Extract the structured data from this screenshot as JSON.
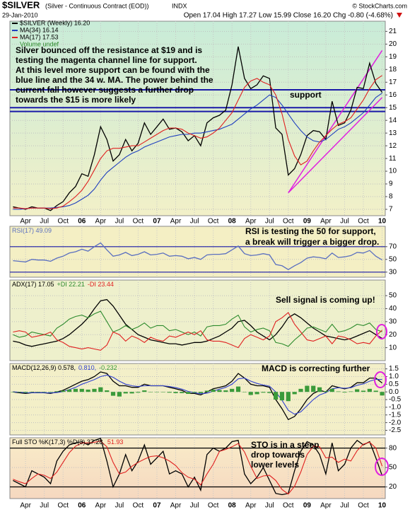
{
  "header": {
    "symbol": "$SILVER",
    "description": "(Silver - Continuous Contract (EOD))",
    "exchange": "INDX",
    "source": "© StockCharts.com",
    "date": "29-Jan-2010",
    "quote": "Open 17.04 High 17.27 Low 15.99 Close 16.20 Chg -0.80 (-4.68%)"
  },
  "chart_data": [
    {
      "type": "line",
      "title": "$SILVER (Weekly) 16.20",
      "categories": [
        null,
        null,
        "Apr",
        null,
        null,
        "Jul",
        null,
        null,
        "Oct",
        null,
        null,
        "06",
        null,
        null,
        "Apr",
        null,
        null,
        "Jul",
        null,
        null,
        "Oct",
        null,
        null,
        "07",
        null,
        null,
        "Apr",
        null,
        null,
        "Jul",
        null,
        null,
        "Oct",
        null,
        null,
        "08",
        null,
        null,
        "Apr",
        null,
        null,
        "Jul",
        null,
        null,
        "Oct",
        null,
        null,
        "09",
        null,
        null,
        "Apr",
        null,
        null,
        "Jul",
        null,
        null,
        "Oct",
        null,
        null,
        "10"
      ],
      "series": [
        {
          "name": "$SILVER (Weekly) 16.20",
          "color": "#000000",
          "values": [
            7.2,
            7.1,
            7.0,
            7.2,
            7.1,
            7.1,
            6.9,
            7.3,
            7.6,
            8.3,
            8.8,
            9.8,
            9.6,
            11.3,
            13.5,
            12.5,
            10.8,
            11.3,
            12.5,
            11.6,
            12.2,
            13.8,
            12.9,
            13.5,
            14.1,
            13.3,
            13.4,
            13.1,
            12.4,
            12.8,
            12.0,
            13.8,
            14.2,
            14.4,
            14.8,
            16.8,
            19.8,
            17.3,
            16.5,
            16.8,
            17.5,
            17.3,
            13.4,
            12.9,
            9.7,
            10.2,
            11.3,
            12.8,
            13.2,
            13.1,
            12.5,
            15.5,
            13.6,
            13.8,
            14.8,
            16.6,
            16.5,
            18.5,
            16.9,
            16.2
          ]
        },
        {
          "name": "MA(34) 16.14",
          "color": "#1f3fbf",
          "values": [
            7.0,
            7.0,
            7.05,
            7.1,
            7.1,
            7.1,
            7.1,
            7.15,
            7.2,
            7.3,
            7.5,
            7.8,
            8.1,
            8.6,
            9.3,
            9.9,
            10.3,
            10.7,
            11.1,
            11.4,
            11.6,
            11.9,
            12.1,
            12.3,
            12.5,
            12.7,
            12.8,
            12.9,
            12.9,
            13.0,
            13.0,
            13.1,
            13.2,
            13.3,
            13.5,
            13.7,
            14.1,
            14.5,
            14.9,
            15.2,
            15.6,
            16.0,
            15.8,
            15.2,
            14.5,
            13.8,
            13.2,
            12.7,
            12.4,
            12.3,
            12.5,
            12.9,
            13.3,
            13.5,
            13.8,
            14.2,
            14.6,
            15.2,
            15.8,
            16.14
          ]
        },
        {
          "name": "MA(17) 17.53",
          "color": "#e02020",
          "values": [
            7.1,
            7.1,
            7.05,
            7.1,
            7.1,
            7.1,
            7.05,
            7.1,
            7.25,
            7.6,
            8.0,
            8.5,
            9.2,
            10.1,
            11.0,
            11.6,
            11.8,
            11.8,
            11.9,
            12.0,
            12.0,
            12.3,
            12.6,
            12.9,
            13.2,
            13.4,
            13.4,
            13.3,
            13.0,
            12.8,
            12.6,
            12.7,
            13.0,
            13.4,
            14.0,
            14.6,
            15.6,
            16.6,
            17.1,
            17.3,
            17.0,
            16.8,
            16.0,
            14.5,
            12.5,
            11.2,
            10.5,
            10.8,
            11.6,
            12.3,
            12.8,
            13.3,
            13.7,
            13.9,
            14.2,
            14.9,
            15.6,
            16.5,
            17.2,
            17.53
          ]
        }
      ],
      "note": "Volume undef",
      "ylim": [
        6.5,
        21.8
      ],
      "yticks": [
        7,
        8,
        9,
        10,
        11,
        12,
        13,
        14,
        15,
        16,
        17,
        18,
        19,
        20,
        21
      ],
      "hlines": [
        16.4,
        15.0,
        14.7
      ],
      "hline_color": "#1a1aa8",
      "trendlines": [
        {
          "x": [
            44,
            59
          ],
          "y": [
            8.3,
            19.5
          ]
        },
        {
          "x": [
            44,
            59
          ],
          "y": [
            8.3,
            15.8
          ]
        }
      ],
      "trendline_color": "#e020e0",
      "annotations": [
        {
          "lines": [
            "Silver bounced off the resistance at $19 and is",
            "testing the magenta channel line for support.",
            "At this level more support can be found with the",
            "blue line and the 34 w. MA. The power behind the",
            "current fall however suggests a further drop",
            "towards the $15 is more likely"
          ],
          "color": "#2020e0"
        },
        {
          "lines": [
            "support"
          ],
          "color": "#2020e0"
        }
      ]
    },
    {
      "type": "line",
      "title": "RSI(17) 49.09",
      "series": [
        {
          "name": "RSI(17) 49.09",
          "color": "#5a6fc0",
          "values": [
            48,
            47,
            46,
            50,
            49,
            49,
            47,
            52,
            55,
            60,
            62,
            66,
            63,
            70,
            76,
            65,
            55,
            57,
            61,
            56,
            58,
            62,
            57,
            58,
            60,
            55,
            56,
            55,
            51,
            53,
            50,
            57,
            58,
            58,
            59,
            65,
            71,
            59,
            56,
            57,
            59,
            57,
            42,
            40,
            34,
            40,
            45,
            52,
            54,
            53,
            51,
            60,
            53,
            54,
            56,
            61,
            60,
            64,
            55,
            49.09
          ]
        }
      ],
      "ylim": [
        22,
        102
      ],
      "yticks": [
        30,
        50,
        70
      ],
      "hlines": [
        70,
        30
      ],
      "hline_color": "#1a1aa8",
      "annotations": [
        {
          "lines": [
            "RSI is testing the 50 for support,",
            "a break will trigger a bigger drop."
          ],
          "color": "#000000"
        }
      ]
    },
    {
      "type": "line",
      "title": "ADX(17) 17.05",
      "series": [
        {
          "name": "ADX(17) 17.05",
          "color": "#000000",
          "values": [
            15,
            14,
            12,
            11,
            12,
            13,
            14,
            15,
            17,
            20,
            24,
            28,
            33,
            40,
            46,
            47,
            42,
            35,
            28,
            24,
            20,
            18,
            16,
            15,
            14,
            13,
            13,
            12,
            13,
            14,
            14,
            15,
            17,
            19,
            22,
            25,
            30,
            31,
            27,
            22,
            19,
            16,
            20,
            26,
            33,
            36,
            33,
            29,
            25,
            22,
            19,
            18,
            17,
            16,
            17,
            19,
            21,
            23,
            20,
            17.05
          ]
        },
        {
          "name": "+DI 22.21",
          "color": "#2e8b2e",
          "values": [
            20,
            18,
            19,
            22,
            21,
            20,
            19,
            25,
            28,
            32,
            34,
            35,
            33,
            36,
            38,
            30,
            22,
            24,
            27,
            24,
            26,
            29,
            25,
            27,
            27,
            23,
            24,
            22,
            20,
            22,
            19,
            26,
            27,
            27,
            28,
            32,
            35,
            26,
            22,
            24,
            25,
            23,
            14,
            13,
            11,
            16,
            20,
            25,
            26,
            24,
            22,
            28,
            22,
            23,
            25,
            28,
            27,
            29,
            24,
            22.21
          ]
        },
        {
          "name": "-DI 23.44",
          "color": "#e02020",
          "values": [
            22,
            23,
            22,
            18,
            19,
            20,
            22,
            16,
            14,
            11,
            10,
            9,
            10,
            9,
            8,
            12,
            22,
            20,
            15,
            19,
            17,
            14,
            18,
            16,
            15,
            19,
            18,
            20,
            22,
            20,
            23,
            16,
            15,
            15,
            14,
            12,
            10,
            17,
            20,
            18,
            16,
            19,
            30,
            33,
            37,
            28,
            22,
            16,
            15,
            17,
            19,
            13,
            19,
            18,
            16,
            13,
            14,
            13,
            19,
            23.44
          ]
        }
      ],
      "ylim": [
        0,
        62
      ],
      "yticks": [
        10,
        20,
        30,
        40,
        50
      ],
      "annotations": [
        {
          "lines": [
            "Sell signal is coming up!"
          ],
          "color": "#e020e0"
        }
      ]
    },
    {
      "type": "line",
      "title": "MACD(12,26,9)",
      "series": [
        {
          "name": "MACD(12,26,9) 0.578,",
          "color": "#000000",
          "values": [
            0,
            -0.05,
            -0.1,
            -0.05,
            -0.05,
            -0.05,
            -0.1,
            0,
            0.1,
            0.3,
            0.5,
            0.7,
            0.8,
            1.0,
            1.3,
            1.2,
            0.7,
            0.4,
            0.4,
            0.3,
            0.3,
            0.5,
            0.4,
            0.4,
            0.4,
            0.3,
            0.2,
            0.1,
            -0.1,
            -0.1,
            -0.2,
            0,
            0.2,
            0.3,
            0.4,
            0.7,
            1.2,
            0.9,
            0.5,
            0.4,
            0.4,
            0.3,
            -0.5,
            -1.1,
            -1.8,
            -1.6,
            -1.1,
            -0.5,
            -0.1,
            0.1,
            0,
            0.4,
            0.3,
            0.2,
            0.3,
            0.6,
            0.6,
            0.9,
            0.9,
            0.578
          ]
        },
        {
          "name": "0.810,",
          "color": "#3040d0",
          "values": [
            0,
            -0.02,
            -0.05,
            -0.06,
            -0.05,
            -0.05,
            -0.07,
            -0.04,
            0.02,
            0.15,
            0.3,
            0.5,
            0.65,
            0.8,
            1.0,
            1.1,
            0.95,
            0.7,
            0.5,
            0.4,
            0.35,
            0.4,
            0.4,
            0.4,
            0.4,
            0.35,
            0.28,
            0.18,
            0.03,
            -0.05,
            -0.12,
            -0.08,
            0.05,
            0.18,
            0.3,
            0.5,
            0.85,
            0.9,
            0.7,
            0.55,
            0.45,
            0.37,
            0.0,
            -0.55,
            -1.2,
            -1.45,
            -1.3,
            -0.9,
            -0.5,
            -0.2,
            -0.05,
            0.2,
            0.27,
            0.24,
            0.27,
            0.43,
            0.52,
            0.7,
            0.82,
            0.81
          ]
        },
        {
          "name": "-0.232",
          "color": "#3a9a3a",
          "style": "histogram",
          "values": [
            0,
            -0.03,
            -0.05,
            0.01,
            0,
            0,
            -0.03,
            0.04,
            0.08,
            0.15,
            0.2,
            0.2,
            0.15,
            0.2,
            0.3,
            0.1,
            -0.25,
            -0.3,
            -0.1,
            -0.1,
            -0.05,
            0.1,
            0,
            0,
            0,
            -0.05,
            -0.08,
            -0.08,
            -0.13,
            -0.05,
            -0.08,
            0.08,
            0.15,
            0.12,
            0.1,
            0.2,
            0.35,
            0,
            -0.2,
            -0.15,
            -0.05,
            -0.07,
            -0.5,
            -0.55,
            -0.6,
            -0.15,
            0.2,
            0.4,
            0.4,
            0.3,
            0.05,
            0.2,
            0.03,
            -0.04,
            0.03,
            0.17,
            0.08,
            0.2,
            0.08,
            -0.232
          ]
        }
      ],
      "ylim": [
        -2.8,
        1.85
      ],
      "yticks": [
        {
          "value": -2.5,
          "label": "-2.5"
        },
        {
          "value": -2,
          "label": "-2.0"
        },
        -1.5,
        {
          "value": -1,
          "label": "-1.0"
        },
        -0.5,
        {
          "value": 0,
          "label": "0.0"
        },
        0.5,
        {
          "value": 1,
          "label": "1.0"
        },
        1.5
      ],
      "annotations": [
        {
          "lines": [
            "MACD is correcting further"
          ],
          "color": "#000000"
        }
      ]
    },
    {
      "type": "line",
      "title": "Full STO %K(17,3) %D(3)",
      "series": [
        {
          "name": "Full STO %K(17,3) %D(3) 37.28,",
          "color": "#000000",
          "values": [
            30,
            25,
            20,
            45,
            40,
            35,
            25,
            60,
            75,
            85,
            88,
            90,
            85,
            92,
            95,
            60,
            20,
            40,
            70,
            45,
            60,
            85,
            55,
            65,
            75,
            40,
            45,
            40,
            20,
            35,
            15,
            70,
            80,
            75,
            80,
            90,
            92,
            40,
            25,
            35,
            50,
            30,
            10,
            8,
            10,
            45,
            75,
            90,
            85,
            70,
            40,
            88,
            45,
            55,
            80,
            92,
            85,
            90,
            65,
            37.28
          ]
        },
        {
          "name": "51.93",
          "color": "#e02020",
          "values": [
            32,
            28,
            25,
            33,
            40,
            38,
            33,
            43,
            58,
            73,
            83,
            88,
            88,
            89,
            91,
            82,
            58,
            40,
            43,
            52,
            58,
            63,
            67,
            68,
            65,
            60,
            53,
            42,
            35,
            32,
            23,
            40,
            55,
            75,
            78,
            82,
            87,
            74,
            52,
            33,
            37,
            38,
            30,
            16,
            9,
            21,
            43,
            70,
            83,
            82,
            65,
            66,
            58,
            63,
            60,
            76,
            86,
            89,
            80,
            51.93
          ]
        }
      ],
      "ylim": [
        2,
        96
      ],
      "yticks": [
        20,
        50,
        80
      ],
      "hlines": [
        80,
        20
      ],
      "hline_color": "#000000",
      "annotations": [
        {
          "lines": [
            "STO is in a steep",
            "drop towards",
            "lower levels"
          ],
          "color": "#e020e0"
        }
      ]
    }
  ]
}
